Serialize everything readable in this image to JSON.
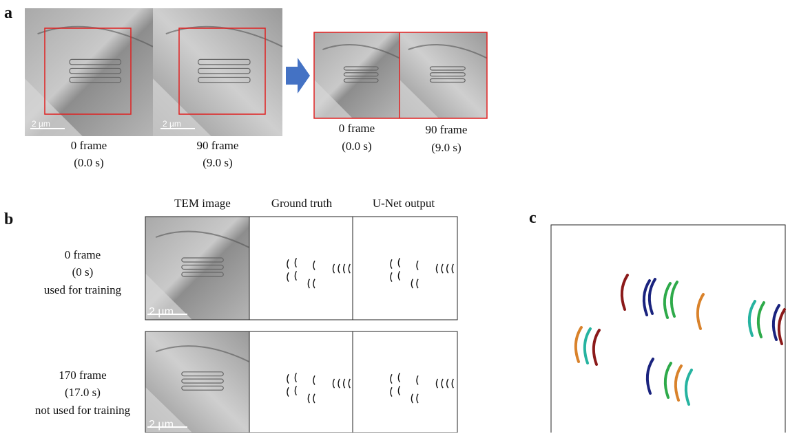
{
  "panel_a": {
    "label": "a",
    "frames": [
      {
        "line1": "0 frame",
        "line2": "(0.0 s)",
        "scale": "2 µm"
      },
      {
        "line1": "90 frame",
        "line2": "(9.0 s)",
        "scale": "2 µm"
      }
    ],
    "crops": [
      {
        "line1": "0 frame",
        "line2": "(0.0 s)"
      },
      {
        "line1": "90 frame",
        "line2": "(9.0 s)"
      }
    ]
  },
  "panel_b": {
    "label": "b",
    "columns": [
      "TEM image",
      "Ground truth",
      "U-Net output"
    ],
    "rows": [
      {
        "lines": [
          "0 frame",
          "(0 s)",
          "used for training"
        ],
        "scale": "2 µm"
      },
      {
        "lines": [
          "170 frame",
          "(17.0 s)",
          "not used for training"
        ],
        "scale": "2 µm"
      }
    ]
  },
  "panel_c": {
    "label": "c"
  }
}
